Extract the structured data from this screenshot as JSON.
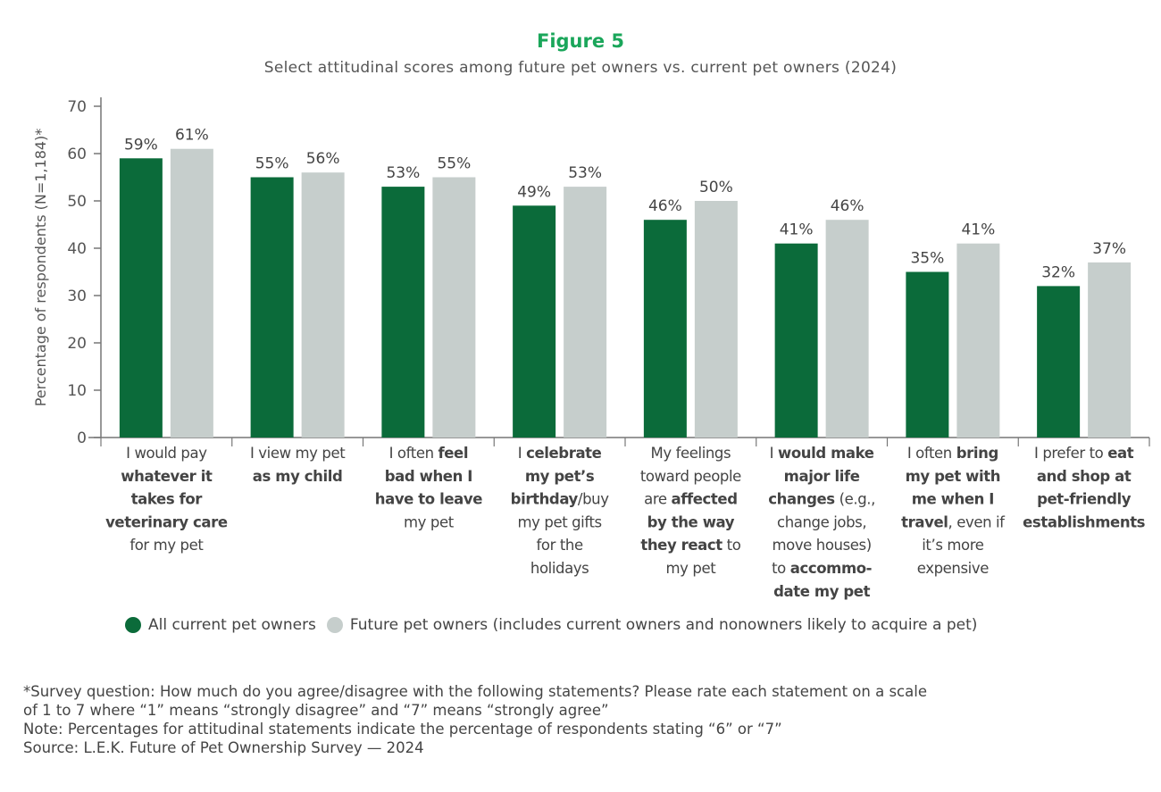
{
  "chart_data": {
    "type": "bar",
    "title": "Figure 5",
    "subtitle": "Select attitudinal scores among future pet owners vs. current pet owners (2024)",
    "ylabel": "Percentage of respondents (N=1,184)*",
    "xlabel": "",
    "ylim": [
      0,
      70
    ],
    "yticks": [
      0,
      10,
      20,
      30,
      40,
      50,
      60,
      70
    ],
    "grid": false,
    "legend_placement": "bottom",
    "categories": [
      [
        [
          {
            "t": "I would pay",
            "b": false
          }
        ],
        [
          {
            "t": "whatever it",
            "b": true
          }
        ],
        [
          {
            "t": "takes for",
            "b": true
          }
        ],
        [
          {
            "t": "veterinary care",
            "b": true
          }
        ],
        [
          {
            "t": "for my pet",
            "b": false
          }
        ]
      ],
      [
        [
          {
            "t": "I view my pet",
            "b": false
          }
        ],
        [
          {
            "t": "as my child",
            "b": true
          }
        ]
      ],
      [
        [
          {
            "t": "I often ",
            "b": false
          },
          {
            "t": "feel",
            "b": true
          }
        ],
        [
          {
            "t": "bad when I",
            "b": true
          }
        ],
        [
          {
            "t": "have to leave",
            "b": true
          }
        ],
        [
          {
            "t": "my pet",
            "b": false
          }
        ]
      ],
      [
        [
          {
            "t": "I ",
            "b": false
          },
          {
            "t": "celebrate",
            "b": true
          }
        ],
        [
          {
            "t": "my pet’s",
            "b": true
          }
        ],
        [
          {
            "t": "birthday",
            "b": true
          },
          {
            "t": "/buy",
            "b": false
          }
        ],
        [
          {
            "t": "my pet gifts",
            "b": false
          }
        ],
        [
          {
            "t": "for the",
            "b": false
          }
        ],
        [
          {
            "t": "holidays",
            "b": false
          }
        ]
      ],
      [
        [
          {
            "t": "My feelings",
            "b": false
          }
        ],
        [
          {
            "t": "toward people",
            "b": false
          }
        ],
        [
          {
            "t": "are ",
            "b": false
          },
          {
            "t": "affected",
            "b": true
          }
        ],
        [
          {
            "t": "by the way",
            "b": true
          }
        ],
        [
          {
            "t": "they react",
            "b": true
          },
          {
            "t": " to",
            "b": false
          }
        ],
        [
          {
            "t": "my pet",
            "b": false
          }
        ]
      ],
      [
        [
          {
            "t": "I ",
            "b": false
          },
          {
            "t": "would make",
            "b": true
          }
        ],
        [
          {
            "t": "major life",
            "b": true
          }
        ],
        [
          {
            "t": "changes",
            "b": true
          },
          {
            "t": " (e.g.,",
            "b": false
          }
        ],
        [
          {
            "t": "change jobs,",
            "b": false
          }
        ],
        [
          {
            "t": "move houses)",
            "b": false
          }
        ],
        [
          {
            "t": "to ",
            "b": false
          },
          {
            "t": "accommo-",
            "b": true
          }
        ],
        [
          {
            "t": "date my pet",
            "b": true
          }
        ]
      ],
      [
        [
          {
            "t": "I often ",
            "b": false
          },
          {
            "t": "bring",
            "b": true
          }
        ],
        [
          {
            "t": "my pet with",
            "b": true
          }
        ],
        [
          {
            "t": "me when I",
            "b": true
          }
        ],
        [
          {
            "t": "travel",
            "b": true
          },
          {
            "t": ", even if",
            "b": false
          }
        ],
        [
          {
            "t": "it’s more",
            "b": false
          }
        ],
        [
          {
            "t": "expensive",
            "b": false
          }
        ]
      ],
      [
        [
          {
            "t": "I prefer to ",
            "b": false
          },
          {
            "t": "eat",
            "b": true
          }
        ],
        [
          {
            "t": "and shop at",
            "b": true
          }
        ],
        [
          {
            "t": "pet-friendly",
            "b": true
          }
        ],
        [
          {
            "t": "establishments",
            "b": true
          }
        ]
      ]
    ],
    "series": [
      {
        "name": "All current pet owners",
        "color": "#0b6b3a",
        "values": [
          59,
          55,
          53,
          49,
          46,
          41,
          35,
          32
        ],
        "labels": [
          "59%",
          "55%",
          "53%",
          "49%",
          "46%",
          "41%",
          "35%",
          "32%"
        ]
      },
      {
        "name": "Future pet owners (includes current owners and nonowners likely to acquire a pet)",
        "color": "#c6cecc",
        "values": [
          61,
          56,
          55,
          53,
          50,
          46,
          41,
          37
        ],
        "labels": [
          "61%",
          "56%",
          "55%",
          "53%",
          "50%",
          "46%",
          "41%",
          "37%"
        ]
      }
    ]
  },
  "notes": [
    "*Survey question: How much do you agree/disagree with the following statements? Please rate each statement on a scale",
    "of 1 to 7 where “1” means “strongly disagree” and “7” means “strongly agree”",
    "Note: Percentages for attitudinal statements indicate the percentage of respondents stating “6” or “7”",
    "Source: L.E.K. Future of Pet Ownership Survey — 2024"
  ]
}
